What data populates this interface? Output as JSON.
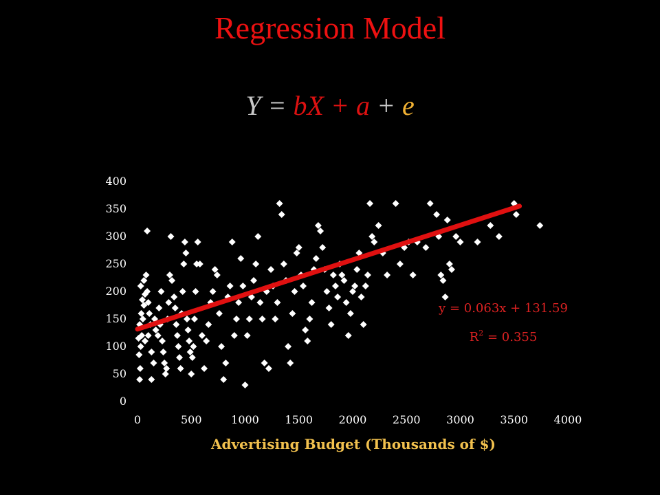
{
  "slide": {
    "title": "Regression Model",
    "equation": {
      "y": "Y",
      "eq": " = ",
      "bx": "bX",
      "plus1": " + ",
      "a": "a",
      "plus2": " + ",
      "e": "e"
    }
  },
  "colors": {
    "background": "#000000",
    "title": "#ee1111",
    "trendline": "#e01010",
    "points": "#ffffff",
    "xlabel": "#f2c14e",
    "annotation": "#dd2222"
  },
  "chart_data": {
    "type": "scatter",
    "title": "",
    "xlabel": "Advertising Budget (Thousands of $)",
    "ylabel": "",
    "xlim": [
      0,
      4000
    ],
    "ylim": [
      0,
      400
    ],
    "xticks": [
      "0",
      "500",
      "1000",
      "1500",
      "2000",
      "2500",
      "3000",
      "3500",
      "4000"
    ],
    "yticks": [
      "0",
      "50",
      "100",
      "150",
      "200",
      "250",
      "300",
      "350",
      "400"
    ],
    "grid": false,
    "marker": "diamond",
    "trendline": {
      "slope": 0.063,
      "intercept": 131.59,
      "x_range": [
        0,
        3550
      ],
      "equation_label": "y = 0.063x + 131.59",
      "r2_prefix": "R",
      "r2_sup": "2",
      "r2_suffix": " = 0.355"
    },
    "points": [
      [
        20,
        40
      ],
      [
        25,
        60
      ],
      [
        15,
        85
      ],
      [
        30,
        100
      ],
      [
        10,
        115
      ],
      [
        40,
        120
      ],
      [
        20,
        140
      ],
      [
        50,
        150
      ],
      [
        35,
        160
      ],
      [
        60,
        175
      ],
      [
        45,
        185
      ],
      [
        70,
        195
      ],
      [
        30,
        210
      ],
      [
        60,
        220
      ],
      [
        80,
        230
      ],
      [
        90,
        200
      ],
      [
        100,
        180
      ],
      [
        110,
        160
      ],
      [
        120,
        140
      ],
      [
        70,
        110
      ],
      [
        100,
        120
      ],
      [
        130,
        90
      ],
      [
        150,
        70
      ],
      [
        90,
        310
      ],
      [
        130,
        40
      ],
      [
        160,
        150
      ],
      [
        170,
        130
      ],
      [
        190,
        120
      ],
      [
        200,
        170
      ],
      [
        210,
        140
      ],
      [
        220,
        200
      ],
      [
        230,
        110
      ],
      [
        240,
        90
      ],
      [
        250,
        70
      ],
      [
        260,
        50
      ],
      [
        270,
        60
      ],
      [
        280,
        150
      ],
      [
        290,
        180
      ],
      [
        300,
        230
      ],
      [
        310,
        300
      ],
      [
        320,
        220
      ],
      [
        340,
        190
      ],
      [
        350,
        170
      ],
      [
        360,
        140
      ],
      [
        370,
        120
      ],
      [
        380,
        100
      ],
      [
        390,
        80
      ],
      [
        400,
        60
      ],
      [
        410,
        160
      ],
      [
        420,
        200
      ],
      [
        430,
        250
      ],
      [
        440,
        290
      ],
      [
        450,
        270
      ],
      [
        460,
        150
      ],
      [
        470,
        130
      ],
      [
        480,
        110
      ],
      [
        490,
        90
      ],
      [
        500,
        50
      ],
      [
        510,
        80
      ],
      [
        520,
        100
      ],
      [
        530,
        150
      ],
      [
        540,
        200
      ],
      [
        550,
        250
      ],
      [
        560,
        290
      ],
      [
        580,
        250
      ],
      [
        600,
        120
      ],
      [
        620,
        60
      ],
      [
        640,
        110
      ],
      [
        660,
        140
      ],
      [
        680,
        180
      ],
      [
        700,
        200
      ],
      [
        720,
        240
      ],
      [
        740,
        230
      ],
      [
        760,
        160
      ],
      [
        780,
        100
      ],
      [
        800,
        40
      ],
      [
        820,
        70
      ],
      [
        840,
        190
      ],
      [
        860,
        210
      ],
      [
        880,
        290
      ],
      [
        900,
        120
      ],
      [
        920,
        150
      ],
      [
        940,
        180
      ],
      [
        960,
        260
      ],
      [
        980,
        210
      ],
      [
        1000,
        30
      ],
      [
        1020,
        120
      ],
      [
        1040,
        150
      ],
      [
        1060,
        190
      ],
      [
        1080,
        220
      ],
      [
        1100,
        250
      ],
      [
        1120,
        300
      ],
      [
        1140,
        180
      ],
      [
        1160,
        150
      ],
      [
        1180,
        70
      ],
      [
        1200,
        200
      ],
      [
        1220,
        60
      ],
      [
        1240,
        240
      ],
      [
        1260,
        210
      ],
      [
        1280,
        150
      ],
      [
        1300,
        180
      ],
      [
        1320,
        360
      ],
      [
        1340,
        340
      ],
      [
        1360,
        250
      ],
      [
        1380,
        220
      ],
      [
        1400,
        100
      ],
      [
        1420,
        70
      ],
      [
        1440,
        160
      ],
      [
        1460,
        200
      ],
      [
        1480,
        270
      ],
      [
        1500,
        280
      ],
      [
        1520,
        230
      ],
      [
        1540,
        210
      ],
      [
        1560,
        130
      ],
      [
        1580,
        110
      ],
      [
        1600,
        150
      ],
      [
        1620,
        180
      ],
      [
        1640,
        240
      ],
      [
        1660,
        260
      ],
      [
        1680,
        320
      ],
      [
        1700,
        310
      ],
      [
        1720,
        280
      ],
      [
        1740,
        240
      ],
      [
        1760,
        200
      ],
      [
        1780,
        170
      ],
      [
        1800,
        140
      ],
      [
        1820,
        230
      ],
      [
        1840,
        210
      ],
      [
        1860,
        190
      ],
      [
        1880,
        250
      ],
      [
        1900,
        230
      ],
      [
        1920,
        220
      ],
      [
        1940,
        180
      ],
      [
        1960,
        120
      ],
      [
        1980,
        160
      ],
      [
        2000,
        200
      ],
      [
        2020,
        210
      ],
      [
        2040,
        240
      ],
      [
        2060,
        270
      ],
      [
        2080,
        190
      ],
      [
        2100,
        140
      ],
      [
        2120,
        210
      ],
      [
        2140,
        230
      ],
      [
        2160,
        360
      ],
      [
        2180,
        300
      ],
      [
        2200,
        290
      ],
      [
        2240,
        320
      ],
      [
        2280,
        270
      ],
      [
        2320,
        230
      ],
      [
        2400,
        360
      ],
      [
        2440,
        250
      ],
      [
        2480,
        280
      ],
      [
        2520,
        290
      ],
      [
        2560,
        230
      ],
      [
        2600,
        290
      ],
      [
        2680,
        280
      ],
      [
        2720,
        360
      ],
      [
        2780,
        340
      ],
      [
        2800,
        300
      ],
      [
        2820,
        230
      ],
      [
        2840,
        220
      ],
      [
        2860,
        190
      ],
      [
        2880,
        330
      ],
      [
        2900,
        250
      ],
      [
        2920,
        240
      ],
      [
        2960,
        300
      ],
      [
        3000,
        290
      ],
      [
        3160,
        290
      ],
      [
        3280,
        320
      ],
      [
        3360,
        300
      ],
      [
        3500,
        360
      ],
      [
        3520,
        340
      ],
      [
        3740,
        320
      ]
    ]
  }
}
